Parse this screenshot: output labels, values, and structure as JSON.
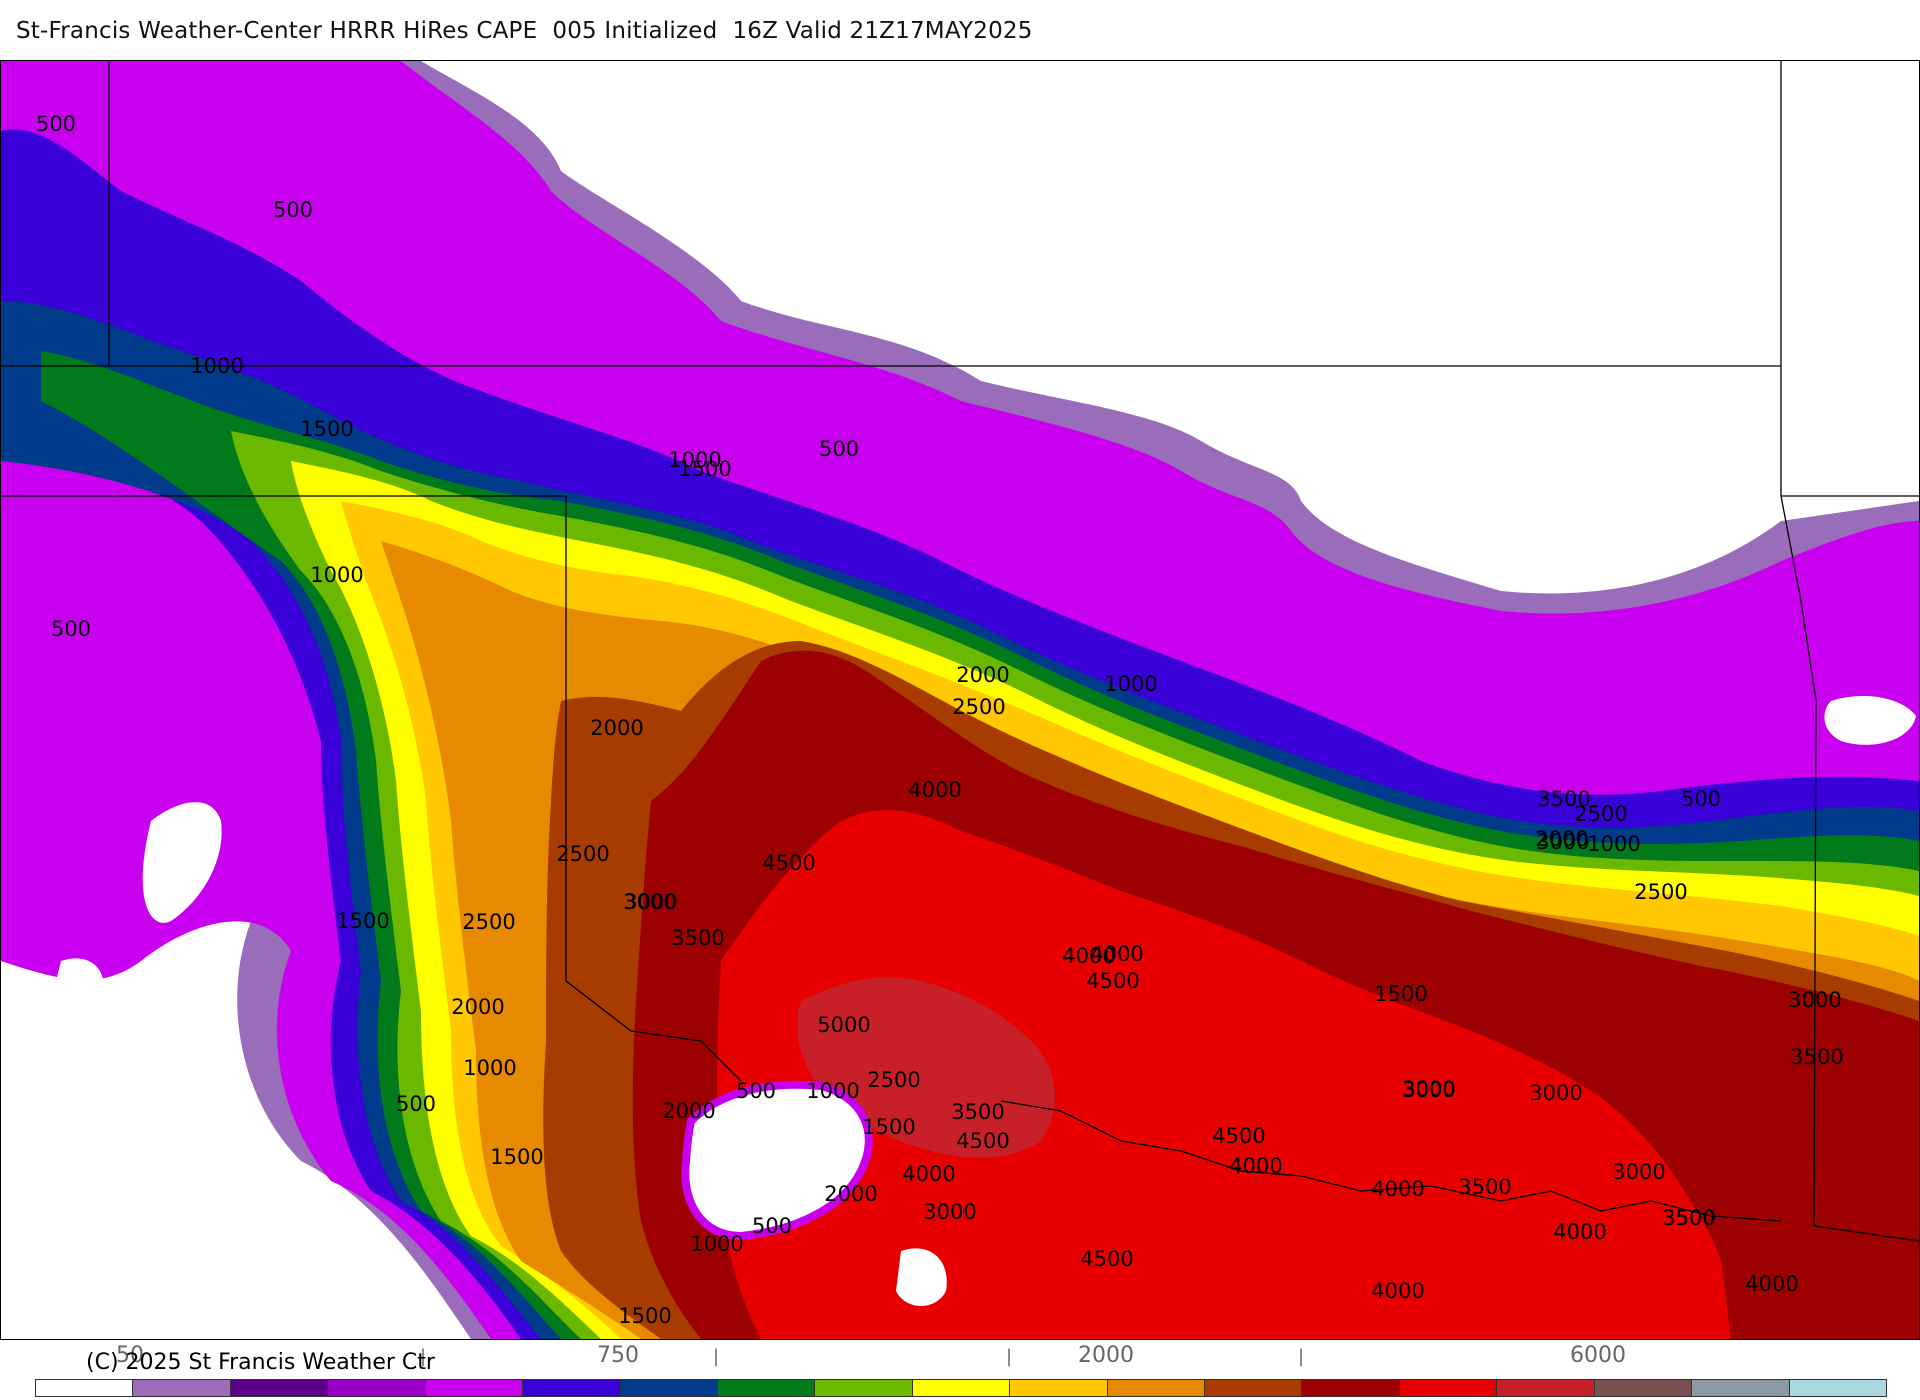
{
  "title": "St-Francis Weather-Center HRRR HiRes CAPE  005 Initialized  16Z Valid 21Z17MAY2025",
  "copyright": "(C) 2025 St Francis Weather Ctr",
  "colorbar": {
    "tick_labels": [
      "50",
      "750",
      "2000",
      "6000"
    ],
    "colors": [
      "#ffffff",
      "#9a6dba",
      "#5a008a",
      "#9a00c8",
      "#c800ef",
      "#3a00d8",
      "#003a8a",
      "#007a1a",
      "#6ab800",
      "#ffff00",
      "#ffc800",
      "#e88a00",
      "#a83c00",
      "#9c0000",
      "#e80000",
      "#c82028",
      "#7a5050",
      "#8a9aa0",
      "#a8d8e0"
    ]
  },
  "contour_labels": [
    "500",
    "500",
    "1000",
    "1500",
    "1000",
    "500",
    "500",
    "1500",
    "1000",
    "2000",
    "2500",
    "2000",
    "1000",
    "2500",
    "3000",
    "3500",
    "4000",
    "4500",
    "3000",
    "3500",
    "2500",
    "1000",
    "500",
    "2000",
    "1500",
    "2500",
    "3000",
    "4000",
    "4500",
    "1500",
    "2500",
    "2000",
    "1000",
    "500",
    "1500",
    "2000",
    "3000",
    "5000",
    "500",
    "1000",
    "2500",
    "1500",
    "3500",
    "4500",
    "4000",
    "3000",
    "2000",
    "500",
    "1000",
    "1500",
    "4500",
    "4500",
    "4000",
    "4000",
    "3500",
    "3000",
    "3000",
    "3000",
    "3500",
    "3500",
    "3000",
    "4000",
    "3500",
    "4000",
    "4000",
    "4000"
  ]
}
